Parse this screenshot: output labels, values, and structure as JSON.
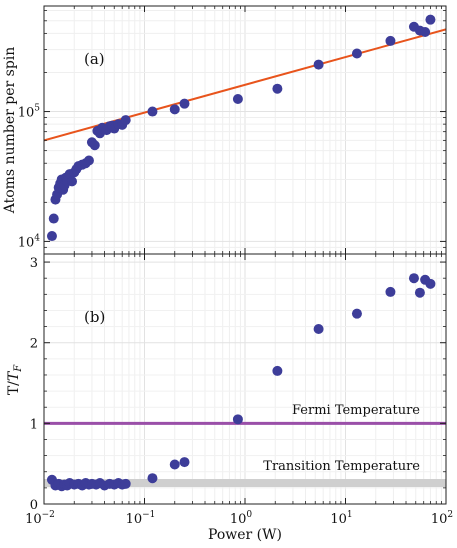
{
  "xlabel": "Power (W)",
  "colors": {
    "points": "#3d3d99",
    "fit_line": "#e8541c",
    "fermi_line": "#9a4fa8",
    "transition_band": "#cfcfcf",
    "annotation": "#e8231c"
  },
  "chart_data": [
    {
      "type": "scatter",
      "panel_label": "(a)",
      "xlabel": "Power (W)",
      "ylabel": "Atoms number per spin",
      "x_scale": "log",
      "y_scale": "log",
      "xlim": [
        0.01,
        100
      ],
      "ylim": [
        8000,
        650000
      ],
      "x_ticks": [
        0.01,
        0.1,
        1,
        10,
        100
      ],
      "y_ticks": [
        10000,
        100000
      ],
      "y_tick_labels": [
        "10^4",
        "10^5"
      ],
      "grid": true,
      "fit_line": {
        "from": [
          0.01,
          60000
        ],
        "to": [
          100,
          430000
        ]
      },
      "x": [
        0.012,
        0.0125,
        0.013,
        0.0135,
        0.014,
        0.0145,
        0.015,
        0.0155,
        0.016,
        0.0165,
        0.017,
        0.018,
        0.019,
        0.02,
        0.021,
        0.022,
        0.024,
        0.026,
        0.028,
        0.03,
        0.032,
        0.034,
        0.036,
        0.038,
        0.04,
        0.042,
        0.045,
        0.048,
        0.05,
        0.055,
        0.06,
        0.065,
        0.12,
        0.2,
        0.25,
        0.85,
        2.1,
        5.4,
        13,
        28,
        48,
        55,
        62,
        70
      ],
      "y": [
        11000,
        15000,
        21000,
        23000,
        26000,
        28000,
        30000,
        25000,
        27000,
        31000,
        29000,
        33000,
        29000,
        34000,
        36000,
        38000,
        39000,
        40000,
        42000,
        58000,
        55000,
        71000,
        68000,
        75000,
        73000,
        72000,
        77000,
        78000,
        74000,
        80000,
        79000,
        86000,
        100000,
        104000,
        115000,
        125000,
        150000,
        230000,
        280000,
        350000,
        450000,
        420000,
        410000,
        510000
      ]
    },
    {
      "type": "scatter",
      "panel_label": "(b)",
      "xlabel": "Power (W)",
      "ylabel": "T/TF",
      "x_scale": "log",
      "y_scale": "linear",
      "xlim": [
        0.01,
        100
      ],
      "ylim": [
        0,
        3.1
      ],
      "x_ticks": [
        0.01,
        0.1,
        1,
        10,
        100
      ],
      "y_ticks": [
        0,
        1,
        2,
        3
      ],
      "grid": true,
      "fermi_temperature": {
        "value": 1.0,
        "label": "Fermi Temperature"
      },
      "transition_temperature": {
        "value": 0.26,
        "band": [
          0.21,
          0.31
        ],
        "label": "Transition Temperature"
      },
      "x": [
        0.012,
        0.013,
        0.014,
        0.015,
        0.016,
        0.017,
        0.018,
        0.02,
        0.022,
        0.024,
        0.026,
        0.028,
        0.03,
        0.033,
        0.036,
        0.04,
        0.045,
        0.05,
        0.055,
        0.06,
        0.065,
        0.12,
        0.2,
        0.25,
        0.85,
        2.1,
        5.4,
        13,
        28,
        48,
        55,
        62,
        70
      ],
      "y": [
        0.3,
        0.23,
        0.25,
        0.22,
        0.24,
        0.23,
        0.26,
        0.24,
        0.25,
        0.23,
        0.26,
        0.24,
        0.25,
        0.24,
        0.26,
        0.23,
        0.25,
        0.24,
        0.26,
        0.24,
        0.25,
        0.32,
        0.49,
        0.52,
        1.05,
        1.65,
        2.17,
        2.36,
        2.63,
        2.8,
        2.62,
        2.78,
        2.73
      ]
    }
  ]
}
